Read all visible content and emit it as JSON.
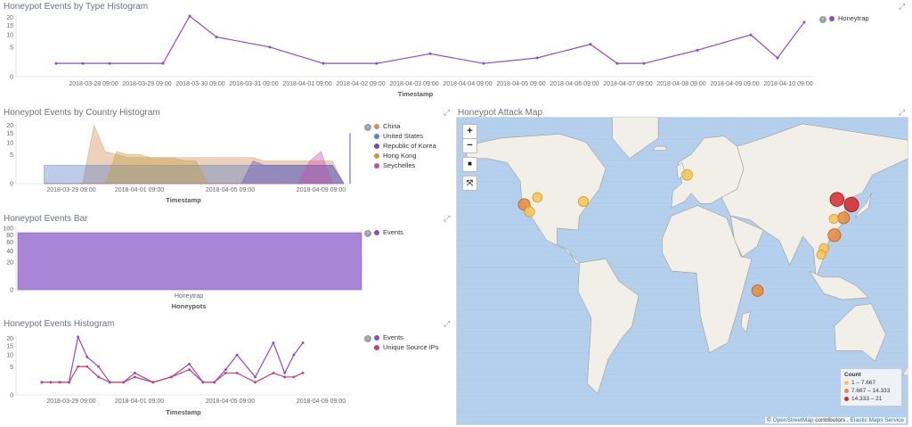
{
  "panels": {
    "type_histogram": {
      "title": "Honeypot Events by Type Histogram",
      "legend": [
        {
          "label": "Honeytrap",
          "color": "#8d4bbf"
        }
      ]
    },
    "country_histogram": {
      "title": "Honeypot Events by Country Histogram",
      "legend": [
        {
          "label": "China",
          "color": "#d08b56"
        },
        {
          "label": "United States",
          "color": "#5a7fc6"
        },
        {
          "label": "Republic of Korea",
          "color": "#6a4fb8"
        },
        {
          "label": "Hong Kong",
          "color": "#c49a3c"
        },
        {
          "label": "Seychelles",
          "color": "#c44fa8"
        }
      ]
    },
    "events_bar": {
      "title": "Honeypot Events Bar",
      "legend": [
        {
          "label": "Events",
          "color": "#8d4bbf"
        }
      ]
    },
    "events_histogram": {
      "title": "Honeypot Events Histogram",
      "legend": [
        {
          "label": "Events",
          "color": "#8d4bbf"
        },
        {
          "label": "Unique Source IPs",
          "color": "#c43f78"
        }
      ]
    },
    "attack_map": {
      "title": "Honeypot Attack Map",
      "legend_title": "Count",
      "legend": [
        {
          "label": "1 – 7.667",
          "color": "#f6c45a"
        },
        {
          "label": "7.667 – 14.333",
          "color": "#ea8a3c"
        },
        {
          "label": "14.333 – 21",
          "color": "#d8282a"
        }
      ],
      "attribution_prefix": "©",
      "attribution_osm": "OpenStreetMap",
      "attribution_mid": "contributors ,",
      "attribution_ems": "Elastic Maps Service",
      "controls": {
        "zoom_in": "+",
        "zoom_out": "−",
        "draw": "■",
        "fit": "⤧"
      }
    }
  },
  "chart_data": [
    {
      "type": "line",
      "title": "Honeypot Events by Type Histogram",
      "xlabel": "Timestamp",
      "ylabel": "",
      "y_scale": "sqrt",
      "yticks": [
        0,
        5,
        10,
        15,
        20
      ],
      "ylim": [
        0,
        21
      ],
      "xticks": [
        "2018-03-28 09:00",
        "2018-03-29 09:00",
        "2018-03-30 09:00",
        "2018-03-31 09:00",
        "2018-04-01 09:00",
        "2018-04-02 09:00",
        "2018-04-03 09:00",
        "2018-04-04 09:00",
        "2018-04-05 09:00",
        "2018-04-06 09:00",
        "2018-04-07 09:00",
        "2018-04-08 09:00",
        "2018-04-09 09:00",
        "2018-04-10 09:00"
      ],
      "x": [
        -0.7,
        -0.2,
        0.3,
        1.3,
        1.8,
        2.3,
        3.3,
        4.3,
        5.3,
        6.3,
        7.3,
        8.3,
        9.3,
        9.8,
        10.3,
        11.3,
        12.3,
        12.8,
        13.3
      ],
      "series": [
        {
          "name": "Honeytrap",
          "values": [
            1,
            1,
            1,
            1,
            21,
            9,
            5,
            1,
            1,
            3,
            1,
            2,
            6,
            1,
            1,
            4,
            10,
            2,
            17
          ]
        }
      ]
    },
    {
      "type": "area",
      "title": "Honeypot Events by Country Histogram",
      "xlabel": "Timestamp",
      "ylabel": "",
      "y_scale": "sqrt",
      "yticks": [
        0,
        5,
        10,
        15,
        20
      ],
      "ylim": [
        0,
        21
      ],
      "xticks": [
        "2018-03-29 09:00",
        "2018-04-01 09:00",
        "2018-04-05 09:00",
        "2018-04-09 09:00"
      ],
      "x": [
        -1.2,
        -0.5,
        0,
        0.5,
        1,
        1.5,
        2,
        2.5,
        3,
        3.5,
        4,
        4.5,
        5,
        5.5,
        6,
        6.5,
        7,
        7.5,
        8,
        8.5,
        9,
        9.5,
        10,
        10.5,
        11,
        11.5,
        12
      ],
      "series": [
        {
          "name": "China",
          "values": [
            0,
            0,
            0,
            0,
            20,
            6,
            5,
            4,
            4,
            4,
            4,
            4,
            4,
            4,
            4,
            4,
            4,
            4,
            4,
            3,
            3,
            3,
            3,
            3,
            3,
            3,
            0
          ]
        },
        {
          "name": "United States",
          "values": [
            2,
            2,
            2,
            2,
            2,
            2,
            2,
            2,
            2,
            2,
            2,
            2,
            2,
            2,
            2,
            2,
            2,
            2,
            2,
            2,
            2,
            2,
            2,
            2,
            2,
            2,
            0
          ]
        },
        {
          "name": "Republic of Korea",
          "values": [
            0,
            0,
            0,
            0,
            0,
            0,
            0,
            0,
            0,
            0,
            0,
            0,
            0,
            0,
            0,
            0,
            0,
            0,
            3,
            2,
            2,
            2,
            2,
            2,
            2,
            2,
            0
          ]
        },
        {
          "name": "Hong Kong",
          "values": [
            0,
            0,
            0,
            0,
            0,
            0,
            6,
            5,
            5,
            4,
            4,
            4,
            3,
            3,
            0,
            0,
            0,
            0,
            0,
            0,
            0,
            0,
            0,
            0,
            0,
            0,
            0
          ]
        },
        {
          "name": "Seychelles",
          "values": [
            0,
            0,
            0,
            0,
            0,
            0,
            0,
            0,
            0,
            0,
            0,
            0,
            0,
            0,
            0,
            0,
            0,
            0,
            0,
            0,
            0,
            0,
            0,
            3,
            6,
            0,
            0
          ]
        }
      ]
    },
    {
      "type": "bar",
      "title": "Honeypot Events Bar",
      "xlabel": "Honeypots",
      "ylabel": "",
      "y_scale": "sqrt",
      "yticks": [
        0,
        20,
        40,
        60,
        80,
        100
      ],
      "ylim": [
        0,
        100
      ],
      "categories": [
        "Honeytrap"
      ],
      "series": [
        {
          "name": "Events",
          "values": [
            86
          ]
        }
      ]
    },
    {
      "type": "line",
      "title": "Honeypot Events Histogram",
      "xlabel": "Timestamp",
      "ylabel": "",
      "y_scale": "sqrt",
      "yticks": [
        0,
        5,
        10,
        15,
        20
      ],
      "ylim": [
        0,
        21
      ],
      "xticks": [
        "2018-03-29 09:00",
        "2018-04-01 09:00",
        "2018-04-05 09:00",
        "2018-04-09 09:00"
      ],
      "x": [
        -1.3,
        -0.9,
        -0.5,
        -0.1,
        0.3,
        0.7,
        1.2,
        1.7,
        2.3,
        2.8,
        3.6,
        4.4,
        5.2,
        5.8,
        6.3,
        6.8,
        7.3,
        8.1,
        8.9,
        9.4,
        9.8,
        10.2
      ],
      "series": [
        {
          "name": "Events",
          "values": [
            1,
            1,
            1,
            1,
            21,
            9,
            5,
            1,
            1,
            3,
            1,
            2,
            6,
            1,
            1,
            4,
            10,
            2,
            17,
            3,
            10,
            17
          ]
        },
        {
          "name": "Unique Source IPs",
          "values": [
            1,
            1,
            1,
            1,
            5,
            5,
            2,
            1,
            1,
            2,
            1,
            2,
            4,
            1,
            1,
            3,
            3,
            1,
            3,
            2,
            2,
            3
          ]
        }
      ]
    }
  ],
  "map_points": [
    {
      "lon": 2,
      "lat": 52,
      "count": 6
    },
    {
      "lon": -122,
      "lat": 37.5,
      "count": 9
    },
    {
      "lon": -118,
      "lat": 34,
      "count": 5
    },
    {
      "lon": -112,
      "lat": 41,
      "count": 4
    },
    {
      "lon": -77,
      "lat": 39,
      "count": 5
    },
    {
      "lon": 116,
      "lat": 40,
      "count": 16
    },
    {
      "lon": 127,
      "lat": 37.5,
      "count": 18
    },
    {
      "lon": 121,
      "lat": 31,
      "count": 9
    },
    {
      "lon": 113.5,
      "lat": 30.5,
      "count": 3
    },
    {
      "lon": 114,
      "lat": 22.5,
      "count": 12
    },
    {
      "lon": 106,
      "lat": 16,
      "count": 4
    },
    {
      "lon": 104,
      "lat": 13,
      "count": 3
    },
    {
      "lon": 55.5,
      "lat": -4.6,
      "count": 8
    }
  ]
}
